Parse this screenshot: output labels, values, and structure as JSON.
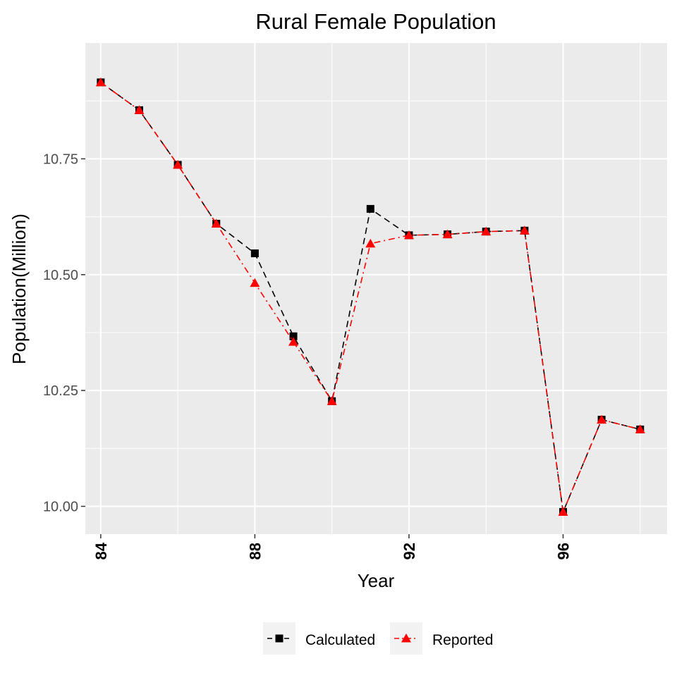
{
  "chart_data": {
    "type": "line",
    "title": "Rural Female Population",
    "xlabel": "Year",
    "ylabel": "Population(Million)",
    "x": [
      84,
      85,
      86,
      87,
      88,
      89,
      90,
      91,
      92,
      93,
      94,
      95,
      96,
      97,
      98
    ],
    "xlim": [
      83.6,
      98.7
    ],
    "ylim": [
      9.94,
      11.0
    ],
    "xticks": [
      84,
      88,
      92,
      96
    ],
    "xtick_labels": [
      "84",
      "88",
      "92",
      "96"
    ],
    "yticks": [
      10.0,
      10.25,
      10.5,
      10.75
    ],
    "ytick_labels": [
      "10.00",
      "10.25",
      "10.50",
      "10.75"
    ],
    "grid": true,
    "legend_position": "bottom",
    "series": [
      {
        "name": "Calculated",
        "color": "#000000",
        "marker": "square",
        "line_style": "dashed",
        "values": [
          10.915,
          10.855,
          10.737,
          10.61,
          10.546,
          10.367,
          10.227,
          10.642,
          10.585,
          10.587,
          10.593,
          10.595,
          9.988,
          10.187,
          10.166
        ]
      },
      {
        "name": "Reported",
        "color": "#ff0000",
        "marker": "triangle",
        "line_style": "dotdash",
        "values": [
          10.915,
          10.855,
          10.737,
          10.61,
          10.482,
          10.355,
          10.227,
          10.567,
          10.585,
          10.587,
          10.593,
          10.595,
          9.988,
          10.187,
          10.166
        ]
      }
    ]
  }
}
